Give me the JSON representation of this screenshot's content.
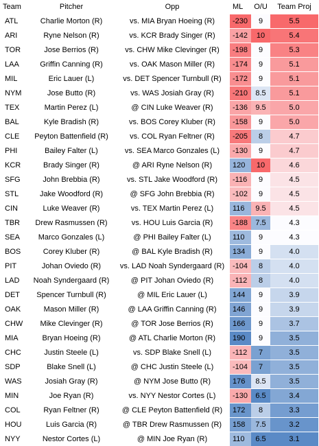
{
  "headers": {
    "team": "Team",
    "pitcher": "Pitcher",
    "opp": "Opp",
    "ml": "ML",
    "ou": "O/U",
    "proj": "Team Proj"
  },
  "colors": {
    "ml_low_red": "#f8696b",
    "high_blue": "#5a8ac6",
    "neutral": "#fcfcff"
  },
  "rows": [
    {
      "team": "ATL",
      "pitcher": "Charlie Morton (R)",
      "opp": "vs. MIA Bryan Hoeing (R)",
      "ml": "-230",
      "ou": "9",
      "proj": "5.5"
    },
    {
      "team": "ARI",
      "pitcher": "Ryne Nelson (R)",
      "opp": "vs. KCR Brady Singer (R)",
      "ml": "-142",
      "ou": "10",
      "proj": "5.4"
    },
    {
      "team": "TOR",
      "pitcher": "Jose Berrios (R)",
      "opp": "vs. CHW Mike Clevinger (R)",
      "ml": "-198",
      "ou": "9",
      "proj": "5.3"
    },
    {
      "team": "LAA",
      "pitcher": "Griffin Canning (R)",
      "opp": "vs. OAK Mason Miller (R)",
      "ml": "-174",
      "ou": "9",
      "proj": "5.1"
    },
    {
      "team": "MIL",
      "pitcher": "Eric Lauer (L)",
      "opp": "vs. DET Spencer Turnbull (R)",
      "ml": "-172",
      "ou": "9",
      "proj": "5.1"
    },
    {
      "team": "NYM",
      "pitcher": "Jose Butto (R)",
      "opp": "vs. WAS Josiah Gray (R)",
      "ml": "-210",
      "ou": "8.5",
      "proj": "5.1"
    },
    {
      "team": "TEX",
      "pitcher": "Martin Perez (L)",
      "opp": "@ CIN Luke Weaver (R)",
      "ml": "-136",
      "ou": "9.5",
      "proj": "5.0"
    },
    {
      "team": "BAL",
      "pitcher": "Kyle Bradish (R)",
      "opp": "vs. BOS Corey Kluber (R)",
      "ml": "-158",
      "ou": "9",
      "proj": "5.0"
    },
    {
      "team": "CLE",
      "pitcher": "Peyton Battenfield (R)",
      "opp": "vs. COL Ryan Feltner (R)",
      "ml": "-205",
      "ou": "8",
      "proj": "4.7"
    },
    {
      "team": "PHI",
      "pitcher": "Bailey Falter (L)",
      "opp": "vs. SEA Marco Gonzales (L)",
      "ml": "-130",
      "ou": "9",
      "proj": "4.7"
    },
    {
      "team": "KCR",
      "pitcher": "Brady Singer (R)",
      "opp": "@ ARI Ryne Nelson (R)",
      "ml": "120",
      "ou": "10",
      "proj": "4.6"
    },
    {
      "team": "SFG",
      "pitcher": "John Brebbia (R)",
      "opp": "vs. STL Jake Woodford (R)",
      "ml": "-116",
      "ou": "9",
      "proj": "4.5"
    },
    {
      "team": "STL",
      "pitcher": "Jake Woodford (R)",
      "opp": "@ SFG John Brebbia (R)",
      "ml": "-102",
      "ou": "9",
      "proj": "4.5"
    },
    {
      "team": "CIN",
      "pitcher": "Luke Weaver (R)",
      "opp": "vs. TEX Martin Perez (L)",
      "ml": "116",
      "ou": "9.5",
      "proj": "4.5"
    },
    {
      "team": "TBR",
      "pitcher": "Drew Rasmussen (R)",
      "opp": "vs. HOU Luis Garcia (R)",
      "ml": "-188",
      "ou": "7.5",
      "proj": "4.3"
    },
    {
      "team": "SEA",
      "pitcher": "Marco Gonzales (L)",
      "opp": "@ PHI Bailey Falter (L)",
      "ml": "110",
      "ou": "9",
      "proj": "4.3"
    },
    {
      "team": "BOS",
      "pitcher": "Corey Kluber (R)",
      "opp": "@ BAL Kyle Bradish (R)",
      "ml": "134",
      "ou": "9",
      "proj": "4.0"
    },
    {
      "team": "PIT",
      "pitcher": "Johan Oviedo (R)",
      "opp": "vs. LAD Noah Syndergaard (R)",
      "ml": "-104",
      "ou": "8",
      "proj": "4.0"
    },
    {
      "team": "LAD",
      "pitcher": "Noah Syndergaard (R)",
      "opp": "@ PIT Johan Oviedo (R)",
      "ml": "-112",
      "ou": "8",
      "proj": "4.0"
    },
    {
      "team": "DET",
      "pitcher": "Spencer Turnbull (R)",
      "opp": "@ MIL Eric Lauer (L)",
      "ml": "144",
      "ou": "9",
      "proj": "3.9"
    },
    {
      "team": "OAK",
      "pitcher": "Mason Miller (R)",
      "opp": "@ LAA Griffin Canning (R)",
      "ml": "146",
      "ou": "9",
      "proj": "3.9"
    },
    {
      "team": "CHW",
      "pitcher": "Mike Clevinger (R)",
      "opp": "@ TOR Jose Berrios (R)",
      "ml": "166",
      "ou": "9",
      "proj": "3.7"
    },
    {
      "team": "MIA",
      "pitcher": "Bryan Hoeing (R)",
      "opp": "@ ATL Charlie Morton (R)",
      "ml": "190",
      "ou": "9",
      "proj": "3.5"
    },
    {
      "team": "CHC",
      "pitcher": "Justin Steele (L)",
      "opp": "vs. SDP Blake Snell (L)",
      "ml": "-112",
      "ou": "7",
      "proj": "3.5"
    },
    {
      "team": "SDP",
      "pitcher": "Blake Snell (L)",
      "opp": "@ CHC Justin Steele (L)",
      "ml": "-104",
      "ou": "7",
      "proj": "3.5"
    },
    {
      "team": "WAS",
      "pitcher": "Josiah Gray (R)",
      "opp": "@ NYM Jose Butto (R)",
      "ml": "176",
      "ou": "8.5",
      "proj": "3.5"
    },
    {
      "team": "MIN",
      "pitcher": "Joe Ryan (R)",
      "opp": "vs. NYY Nestor Cortes (L)",
      "ml": "-130",
      "ou": "6.5",
      "proj": "3.4"
    },
    {
      "team": "COL",
      "pitcher": "Ryan Feltner (R)",
      "opp": "@ CLE Peyton Battenfield (R)",
      "ml": "172",
      "ou": "8",
      "proj": "3.3"
    },
    {
      "team": "HOU",
      "pitcher": "Luis Garcia (R)",
      "opp": "@ TBR Drew Rasmussen (R)",
      "ml": "158",
      "ou": "7.5",
      "proj": "3.2"
    },
    {
      "team": "NYY",
      "pitcher": "Nestor Cortes (L)",
      "opp": "@ MIN Joe Ryan (R)",
      "ml": "110",
      "ou": "6.5",
      "proj": "3.1"
    }
  ]
}
